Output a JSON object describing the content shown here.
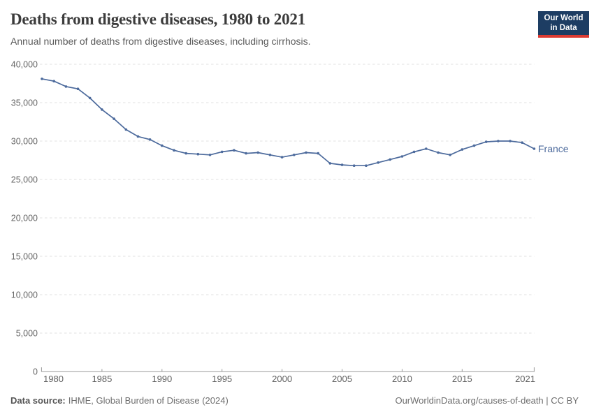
{
  "header": {
    "title": "Deaths from digestive diseases, 1980 to 2021",
    "subtitle": "Annual number of deaths from digestive diseases, including cirrhosis.",
    "logo": {
      "line1": "Our World",
      "line2": "in Data",
      "bg_color": "#1d3d63",
      "accent_color": "#dc3b32"
    }
  },
  "chart_data": {
    "type": "line",
    "title": "Deaths from digestive diseases, 1980 to 2021",
    "subtitle": "Annual number of deaths from digestive diseases, including cirrhosis.",
    "xlabel": "",
    "ylabel": "",
    "xlim": [
      1980,
      2021
    ],
    "ylim": [
      0,
      40000
    ],
    "grid": "horizontal-dashed",
    "legend_position": "line-end",
    "x": [
      1980,
      1981,
      1982,
      1983,
      1984,
      1985,
      1986,
      1987,
      1988,
      1989,
      1990,
      1991,
      1992,
      1993,
      1994,
      1995,
      1996,
      1997,
      1998,
      1999,
      2000,
      2001,
      2002,
      2003,
      2004,
      2005,
      2006,
      2007,
      2008,
      2009,
      2010,
      2011,
      2012,
      2013,
      2014,
      2015,
      2016,
      2017,
      2018,
      2019,
      2020,
      2021
    ],
    "series": [
      {
        "name": "France",
        "color": "#4c6a9c",
        "values": [
          38100,
          37800,
          37100,
          36800,
          35600,
          34100,
          32900,
          31500,
          30600,
          30200,
          29400,
          28800,
          28400,
          28300,
          28200,
          28600,
          28800,
          28400,
          28500,
          28200,
          27900,
          28200,
          28500,
          28400,
          27100,
          26900,
          26800,
          26800,
          27200,
          27600,
          28000,
          28600,
          29000,
          28500,
          28200,
          28900,
          29400,
          29900,
          30000,
          30000,
          29800,
          29000
        ]
      }
    ],
    "x_ticks": [
      {
        "value": 1980,
        "label": "1980"
      },
      {
        "value": 1985,
        "label": "1985"
      },
      {
        "value": 1990,
        "label": "1990"
      },
      {
        "value": 1995,
        "label": "1995"
      },
      {
        "value": 2000,
        "label": "2000"
      },
      {
        "value": 2005,
        "label": "2005"
      },
      {
        "value": 2010,
        "label": "2010"
      },
      {
        "value": 2015,
        "label": "2015"
      },
      {
        "value": 2021,
        "label": "2021"
      }
    ],
    "y_ticks": [
      {
        "value": 0,
        "label": "0"
      },
      {
        "value": 5000,
        "label": "5,000"
      },
      {
        "value": 10000,
        "label": "10,000"
      },
      {
        "value": 15000,
        "label": "15,000"
      },
      {
        "value": 20000,
        "label": "20,000"
      },
      {
        "value": 25000,
        "label": "25,000"
      },
      {
        "value": 30000,
        "label": "30,000"
      },
      {
        "value": 35000,
        "label": "35,000"
      },
      {
        "value": 40000,
        "label": "40,000"
      }
    ]
  },
  "footer": {
    "source_label": "Data source:",
    "source_text": "IHME, Global Burden of Disease (2024)",
    "link_text": "OurWorldinData.org/causes-of-death | CC BY"
  },
  "colors": {
    "line": "#4c6a9c",
    "grid": "#e0e0e0",
    "axis": "#999999",
    "y_tick_label": "#666666",
    "x_tick_label": "#5f5f5f"
  }
}
